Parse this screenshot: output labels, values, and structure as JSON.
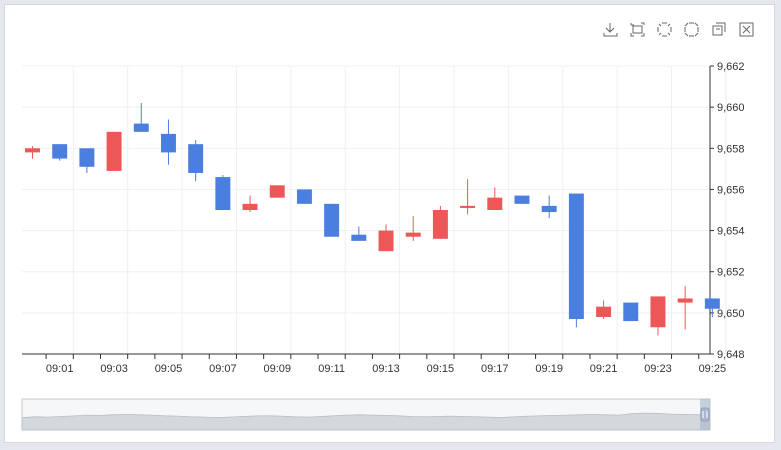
{
  "chart_data": {
    "type": "candlestick",
    "x": [
      "09:00",
      "09:01",
      "09:02",
      "09:03",
      "09:04",
      "09:05",
      "09:06",
      "09:07",
      "09:08",
      "09:09",
      "09:10",
      "09:11",
      "09:12",
      "09:13",
      "09:14",
      "09:15",
      "09:16",
      "09:17",
      "09:18",
      "09:19",
      "09:20",
      "09:21",
      "09:22",
      "09:23",
      "09:24",
      "09:25"
    ],
    "x_tick_labels": [
      "09:01",
      "09:03",
      "09:05",
      "09:07",
      "09:09",
      "09:11",
      "09:13",
      "09:15",
      "09:17",
      "09:19",
      "09:21",
      "09:23",
      "09:25"
    ],
    "ohlc": [
      {
        "open": 9657.8,
        "close": 9658.0,
        "high": 9658.1,
        "low": 9657.5
      },
      {
        "open": 9658.2,
        "close": 9657.5,
        "high": 9658.2,
        "low": 9657.4
      },
      {
        "open": 9658.0,
        "close": 9657.1,
        "high": 9658.0,
        "low": 9656.8
      },
      {
        "open": 9656.9,
        "close": 9658.8,
        "high": 9658.8,
        "low": 9656.9
      },
      {
        "open": 9659.2,
        "close": 9658.8,
        "high": 9660.2,
        "low": 9658.8
      },
      {
        "open": 9658.7,
        "close": 9657.8,
        "high": 9659.4,
        "low": 9657.2
      },
      {
        "open": 9658.2,
        "close": 9656.8,
        "high": 9658.4,
        "low": 9656.4
      },
      {
        "open": 9656.6,
        "close": 9655.0,
        "high": 9656.7,
        "low": 9655.0
      },
      {
        "open": 9655.0,
        "close": 9655.3,
        "high": 9655.7,
        "low": 9654.9
      },
      {
        "open": 9655.6,
        "close": 9656.2,
        "high": 9656.2,
        "low": 9655.6
      },
      {
        "open": 9656.0,
        "close": 9655.3,
        "high": 9656.0,
        "low": 9655.3
      },
      {
        "open": 9655.3,
        "close": 9653.7,
        "high": 9655.3,
        "low": 9653.7
      },
      {
        "open": 9653.8,
        "close": 9653.5,
        "high": 9654.2,
        "low": 9653.5
      },
      {
        "open": 9653.0,
        "close": 9654.0,
        "high": 9654.3,
        "low": 9653.0
      },
      {
        "open": 9653.7,
        "close": 9653.9,
        "high": 9654.7,
        "low": 9653.5
      },
      {
        "open": 9653.6,
        "close": 9655.0,
        "high": 9655.2,
        "low": 9653.6
      },
      {
        "open": 9655.1,
        "close": 9655.2,
        "high": 9656.5,
        "low": 9654.8
      },
      {
        "open": 9655.0,
        "close": 9655.6,
        "high": 9656.1,
        "low": 9655.0
      },
      {
        "open": 9655.7,
        "close": 9655.3,
        "high": 9655.7,
        "low": 9655.3
      },
      {
        "open": 9655.2,
        "close": 9654.9,
        "high": 9655.7,
        "low": 9654.6
      },
      {
        "open": 9655.8,
        "close": 9649.7,
        "high": 9655.8,
        "low": 9649.3
      },
      {
        "open": 9649.8,
        "close": 9650.3,
        "high": 9650.6,
        "low": 9649.7
      },
      {
        "open": 9650.5,
        "close": 9649.6,
        "high": 9650.5,
        "low": 9649.6
      },
      {
        "open": 9649.3,
        "close": 9650.8,
        "high": 9650.8,
        "low": 9648.9
      },
      {
        "open": 9650.5,
        "close": 9650.7,
        "high": 9651.3,
        "low": 9649.2
      },
      {
        "open": 9650.7,
        "close": 9650.2,
        "high": 9650.7,
        "low": 9649.8
      }
    ],
    "y_ticks": [
      9648,
      9650,
      9652,
      9654,
      9656,
      9658,
      9660,
      9662
    ],
    "y_tick_labels": [
      "9,648",
      "9,650",
      "9,652",
      "9,654",
      "9,656",
      "9,658",
      "9,660",
      "9,662"
    ],
    "ylim": [
      9648,
      9662
    ],
    "y_axis_position": "right",
    "grid": true,
    "colors": {
      "up": "#ec5757",
      "down": "#4a7fe0",
      "grid": "#eef0f3",
      "axis": "#333333",
      "slider_fill": "#d3d8dc",
      "slider_stroke": "#c4c8cc"
    },
    "zoom_slider": {
      "range_start": 0,
      "range_end": 1,
      "profile": [
        0.55,
        0.6,
        0.58,
        0.62,
        0.65,
        0.7,
        0.68,
        0.72,
        0.74,
        0.72,
        0.7,
        0.66,
        0.64,
        0.6,
        0.58,
        0.56,
        0.58,
        0.62,
        0.65,
        0.66,
        0.64,
        0.6,
        0.58,
        0.62,
        0.66,
        0.7,
        0.72,
        0.7,
        0.68,
        0.66,
        0.62,
        0.6,
        0.62,
        0.64,
        0.62,
        0.6,
        0.58,
        0.56,
        0.6,
        0.64,
        0.66,
        0.68,
        0.7,
        0.72,
        0.74,
        0.72,
        0.7,
        0.78,
        0.82,
        0.8,
        0.76,
        0.74,
        0.72,
        0.75
      ]
    }
  },
  "toolbox": {
    "tools": [
      {
        "name": "download-icon"
      },
      {
        "name": "zoom-select-icon"
      },
      {
        "name": "zoom-in-icon"
      },
      {
        "name": "zoom-out-icon"
      },
      {
        "name": "restore-icon"
      },
      {
        "name": "clear-icon"
      }
    ]
  }
}
